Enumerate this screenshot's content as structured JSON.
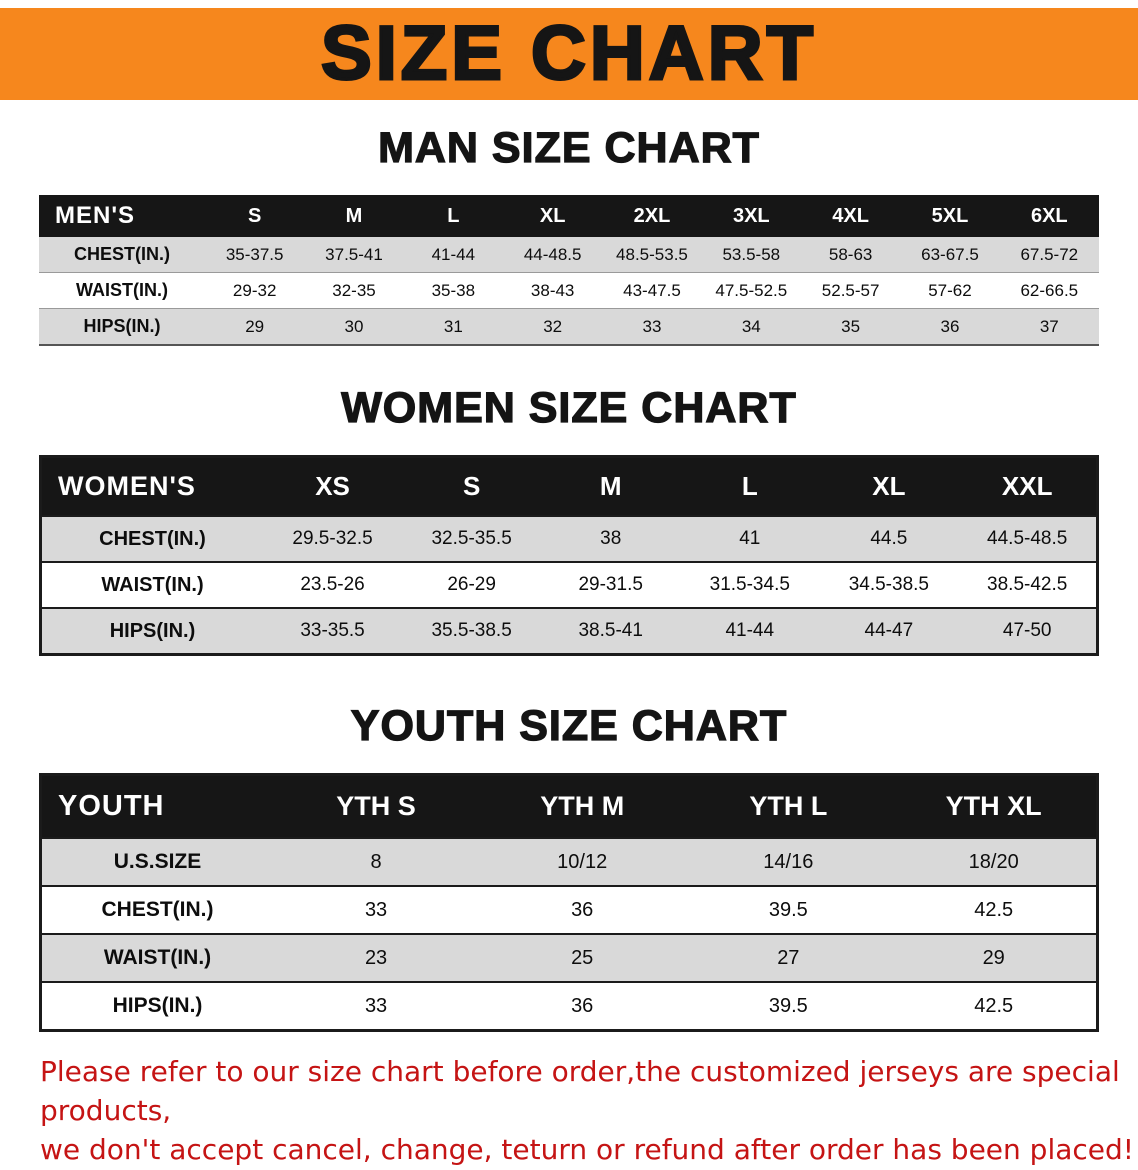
{
  "banner": {
    "title": "SIZE CHART"
  },
  "sections": [
    {
      "heading": "MAN SIZE CHART",
      "table": {
        "header": [
          "MEN'S",
          "S",
          "M",
          "L",
          "XL",
          "2XL",
          "3XL",
          "4XL",
          "5XL",
          "6XL"
        ],
        "rows": [
          [
            "CHEST(IN.)",
            "35-37.5",
            "37.5-41",
            "41-44",
            "44-48.5",
            "48.5-53.5",
            "53.5-58",
            "58-63",
            "63-67.5",
            "67.5-72"
          ],
          [
            "WAIST(IN.)",
            "29-32",
            "32-35",
            "35-38",
            "38-43",
            "43-47.5",
            "47.5-52.5",
            "52.5-57",
            "57-62",
            "62-66.5"
          ],
          [
            "HIPS(IN.)",
            "29",
            "30",
            "31",
            "32",
            "33",
            "34",
            "35",
            "36",
            "37"
          ]
        ]
      }
    },
    {
      "heading": "WOMEN SIZE CHART",
      "table": {
        "header": [
          "WOMEN'S",
          "XS",
          "S",
          "M",
          "L",
          "XL",
          "XXL"
        ],
        "rows": [
          [
            "CHEST(IN.)",
            "29.5-32.5",
            "32.5-35.5",
            "38",
            "41",
            "44.5",
            "44.5-48.5"
          ],
          [
            "WAIST(IN.)",
            "23.5-26",
            "26-29",
            "29-31.5",
            "31.5-34.5",
            "34.5-38.5",
            "38.5-42.5"
          ],
          [
            "HIPS(IN.)",
            "33-35.5",
            "35.5-38.5",
            "38.5-41",
            "41-44",
            "44-47",
            "47-50"
          ]
        ]
      }
    },
    {
      "heading": "YOUTH SIZE CHART",
      "table": {
        "header": [
          "YOUTH",
          "YTH S",
          "YTH M",
          "YTH L",
          "YTH XL"
        ],
        "rows": [
          [
            "U.S.SIZE",
            "8",
            "10/12",
            "14/16",
            "18/20"
          ],
          [
            "CHEST(IN.)",
            "33",
            "36",
            "39.5",
            "42.5"
          ],
          [
            "WAIST(IN.)",
            "23",
            "25",
            "27",
            "29"
          ],
          [
            "HIPS(IN.)",
            "33",
            "36",
            "39.5",
            "42.5"
          ]
        ]
      }
    }
  ],
  "disclaimer": {
    "line1": "Please refer to our size chart before order,the customized jerseys are special products,",
    "line2": "we don't accept cancel, change, teturn or refund after order has been placed!"
  },
  "colors": {
    "banner_bg": "#F6871D",
    "header_bg": "#161616",
    "stripe": "#D9D9D9",
    "disclaimer": "#C51414"
  }
}
